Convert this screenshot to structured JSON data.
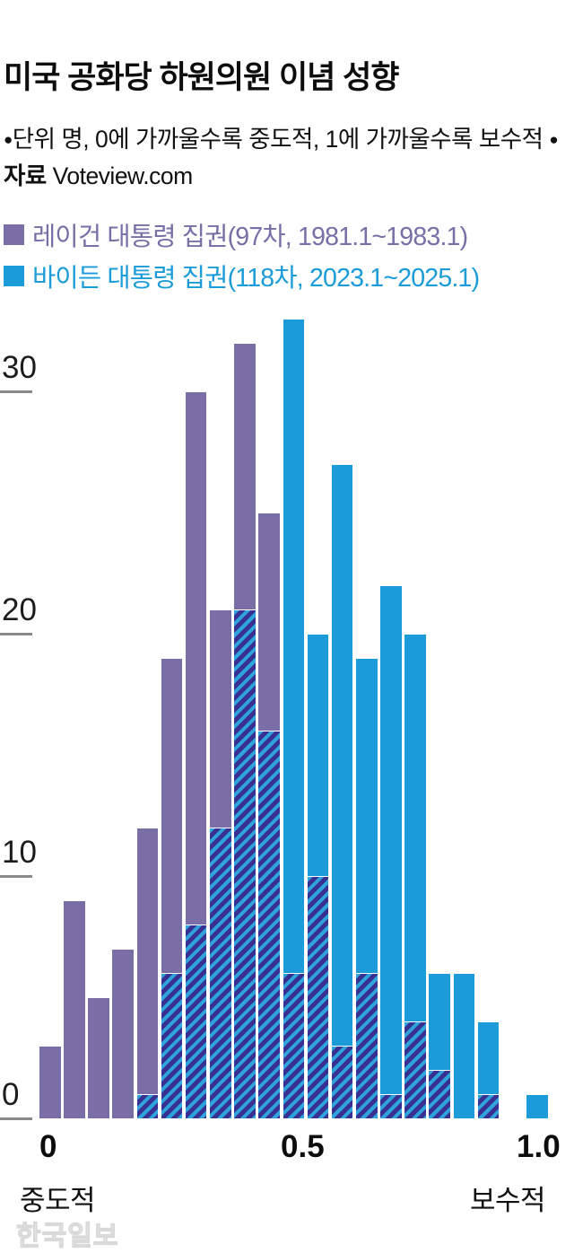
{
  "header": {
    "title": "미국 공화당 하원의원 이념 성향",
    "bullet": "●",
    "note_unit_label": "단위",
    "note_unit_text": " 명, 0에 가까울수록 중도적, 1에 가까울수록 보수적 ",
    "note_source_label": "자료",
    "note_source_text": " Voteview.com"
  },
  "colors": {
    "reagan_purple": "#7a6ea6",
    "biden_blue": "#1b9cd8",
    "hatch_navy": "#38318f",
    "hatch_blue": "#2ea3dc",
    "tick_gray": "#8a8a8a"
  },
  "legend": [
    {
      "label": "레이건 대통령 집권(97차, 1981.1~1983.1)",
      "color": "#7a6ea6"
    },
    {
      "label": "바이든 대통령 집권(118차, 2023.1~2025.1)",
      "color": "#1b9cd8"
    }
  ],
  "chart_data": {
    "type": "bar",
    "subtype": "overlaid-histogram-with-hatched-overlap",
    "title": "미국 공화당 하원의원 이념 성향",
    "unit": "명 (persons)",
    "x_bin_start": 0.0,
    "x_bin_width": 0.05,
    "x": [
      0.025,
      0.075,
      0.125,
      0.175,
      0.225,
      0.275,
      0.325,
      0.375,
      0.425,
      0.475,
      0.525,
      0.575,
      0.625,
      0.675,
      0.725,
      0.775,
      0.825,
      0.875,
      0.925,
      0.975,
      1.025
    ],
    "series": [
      {
        "name": "레이건 대통령 집권(97차, 1981.1~1983.1)",
        "color": "#7a6ea6",
        "values": [
          3,
          9,
          5,
          7,
          12,
          19,
          30,
          21,
          32,
          25,
          6,
          10,
          3,
          6,
          1,
          4,
          2,
          0,
          1,
          0,
          0
        ]
      },
      {
        "name": "바이든 대통령 집권(118차, 2023.1~2025.1)",
        "color": "#1b9cd8",
        "values": [
          0,
          0,
          0,
          0,
          1,
          6,
          8,
          12,
          21,
          16,
          33,
          20,
          27,
          19,
          22,
          20,
          6,
          6,
          4,
          0,
          1
        ]
      }
    ],
    "overlap_rendering": "hatched diagonal stripes (/) where both series overlap, up to min(series) per bin",
    "ylim": [
      0,
      33
    ],
    "yticks": [
      0,
      10,
      20,
      30
    ],
    "xticks": [
      "0",
      "0.5",
      "1.0"
    ],
    "xlabel_left": "중도적",
    "xlabel_right": "보수적",
    "grid": "off",
    "legend_position": "top-left"
  },
  "axis": {
    "ytick_labels": [
      "30",
      "20",
      "10",
      "0"
    ],
    "xtick_labels": [
      "0",
      "0.5",
      "1.0"
    ]
  },
  "watermark": "한국일보"
}
